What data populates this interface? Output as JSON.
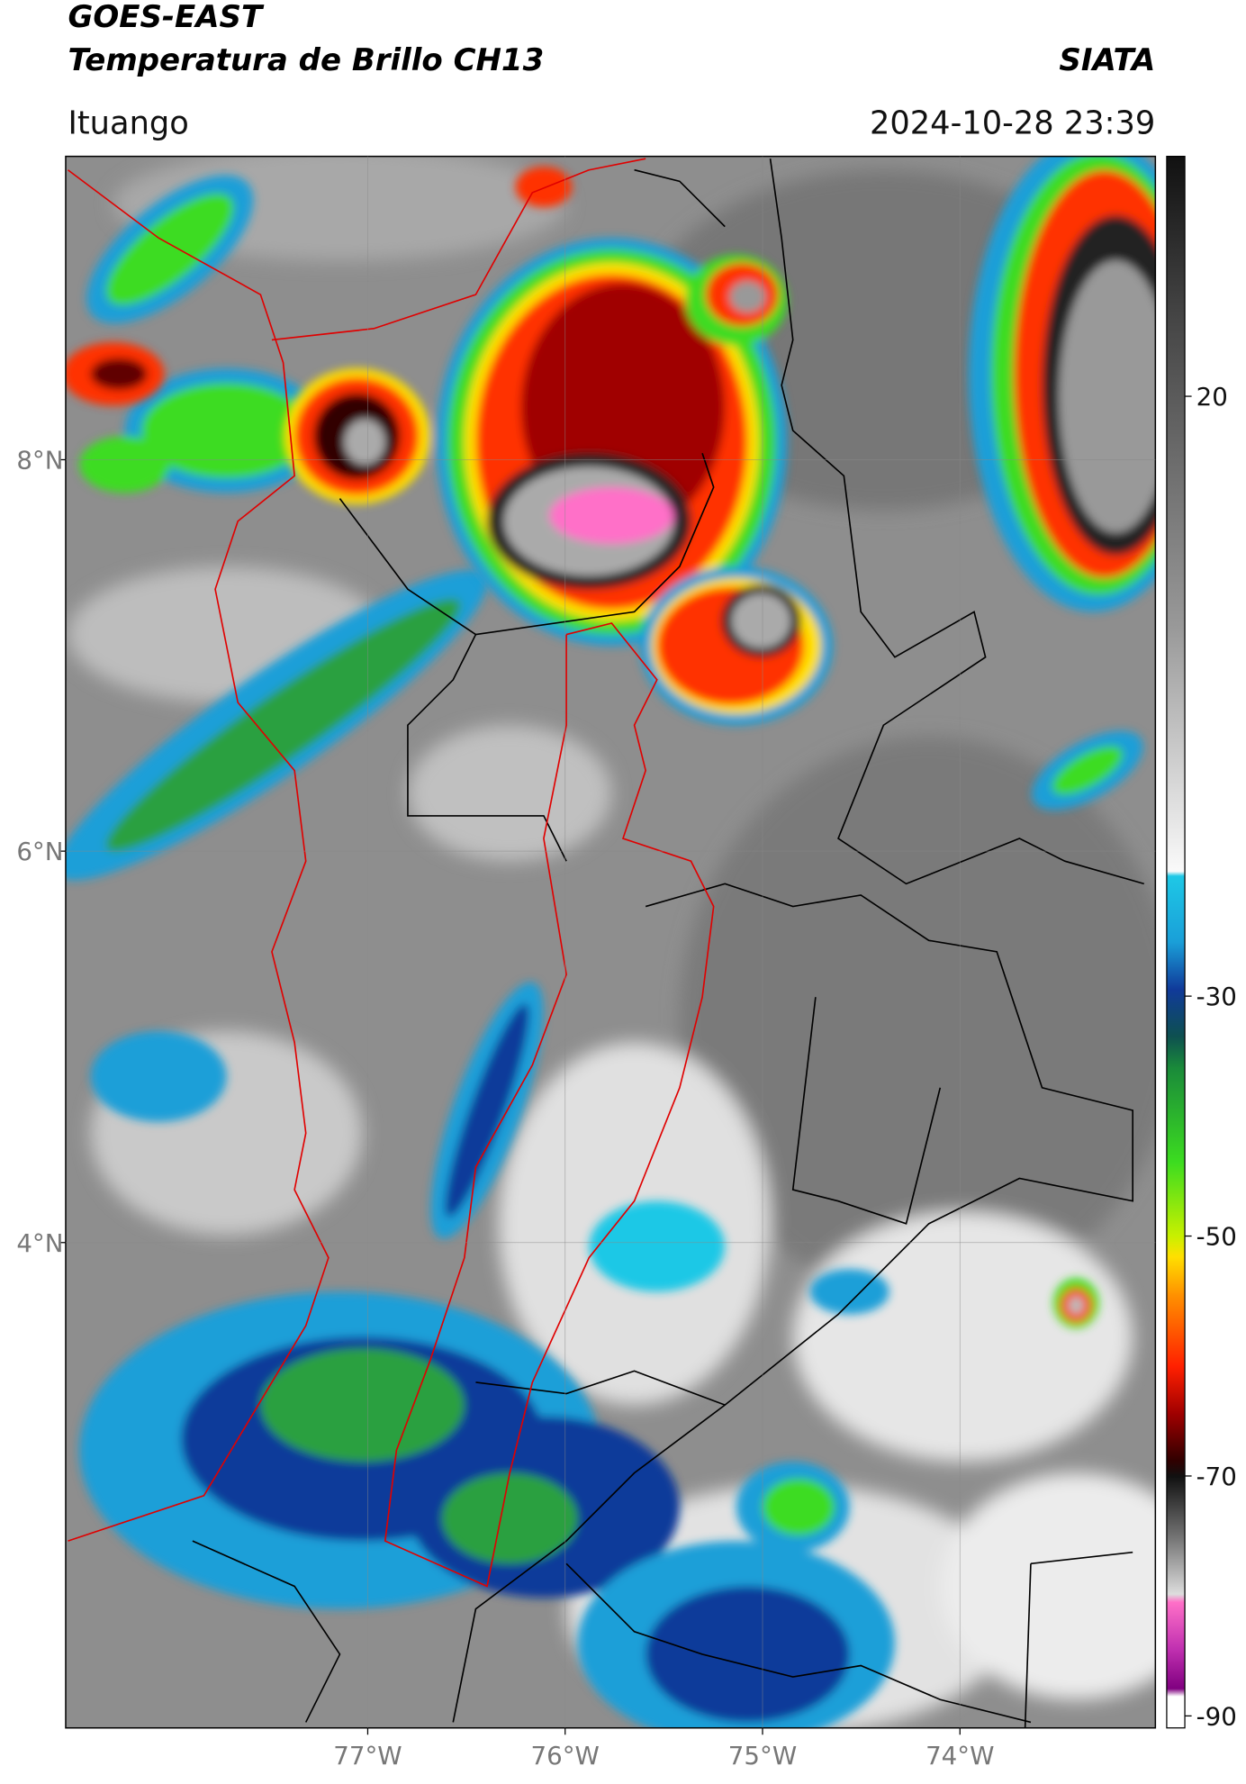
{
  "header": {
    "satellite": "GOES-EAST",
    "title": "Temperatura de Brillo CH13",
    "org": "SIATA",
    "location": "Ituango",
    "datetime": "2024-10-28 23:39"
  },
  "map": {
    "xlim": [
      -78.53,
      -73.01
    ],
    "ylim": [
      1.52,
      9.55
    ],
    "xticks": [
      {
        "value": -77,
        "label": "77°W"
      },
      {
        "value": -76,
        "label": "76°W"
      },
      {
        "value": -75,
        "label": "75°W"
      },
      {
        "value": -74,
        "label": "74°W"
      }
    ],
    "yticks": [
      {
        "value": 8,
        "label": "8°N"
      },
      {
        "value": 6,
        "label": "6°N"
      },
      {
        "value": 4,
        "label": "4°N"
      }
    ]
  },
  "colorbar": {
    "lim": [
      -91,
      40
    ],
    "ticks": [
      20,
      -30,
      -50,
      -70,
      -90
    ]
  }
}
